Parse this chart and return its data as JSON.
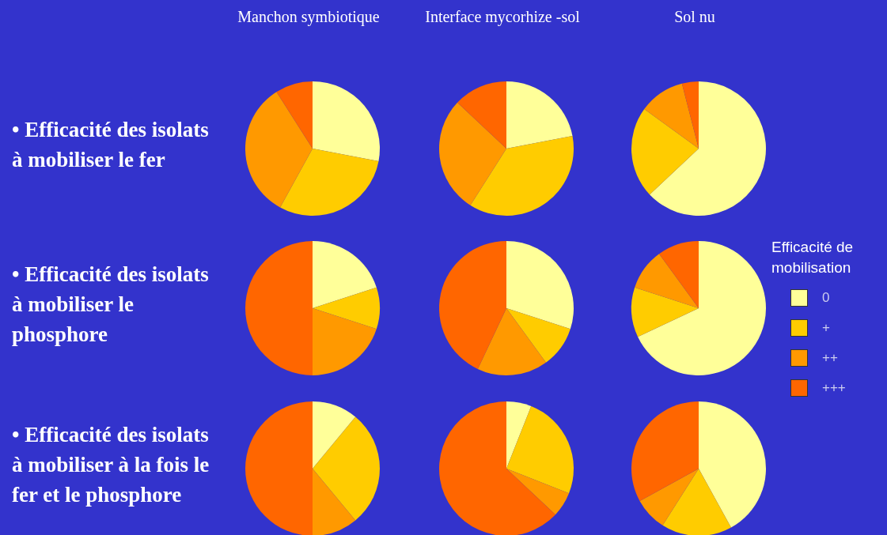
{
  "chart_data": [
    {
      "type": "pie",
      "title": "Manchon symbiotique",
      "ylabel": "• Efficacité des isolats à mobiliser le fer",
      "categories": [
        null,
        null,
        null,
        null
      ],
      "values": [
        28,
        30,
        33,
        9
      ],
      "colors": [
        "#ffff99",
        "#ffcc00",
        "#ff9900",
        "#ff6600"
      ],
      "legend": false
    },
    {
      "type": "pie",
      "title": "Interface mycorhize -sol",
      "categories": [
        null,
        null,
        null,
        null
      ],
      "values": [
        22,
        37,
        28,
        13
      ],
      "colors": [
        "#ffff99",
        "#ffcc00",
        "#ff9900",
        "#ff6600"
      ],
      "legend": false
    },
    {
      "type": "pie",
      "title": "Sol nu",
      "categories": [
        null,
        null,
        null,
        null
      ],
      "values": [
        63,
        22,
        11,
        4
      ],
      "colors": [
        "#ffff99",
        "#ffcc00",
        "#ff9900",
        "#ff6600"
      ],
      "legend": false
    },
    {
      "type": "pie",
      "ylabel": "• Efficacité des isolats à mobiliser le phosphore",
      "categories": [
        null,
        null,
        null,
        null
      ],
      "values": [
        20,
        10,
        20,
        50
      ],
      "colors": [
        "#ffff99",
        "#ffcc00",
        "#ff9900",
        "#ff6600"
      ],
      "legend": false
    },
    {
      "type": "pie",
      "categories": [
        null,
        null,
        null,
        null
      ],
      "values": [
        30,
        10,
        17,
        43
      ],
      "colors": [
        "#ffff99",
        "#ffcc00",
        "#ff9900",
        "#ff6600"
      ],
      "legend": false
    },
    {
      "type": "pie",
      "legend_title": "Efficacité de mobilisation",
      "categories": [
        "0",
        "+",
        "++",
        "+++"
      ],
      "values": [
        68,
        12,
        10,
        10
      ],
      "colors": [
        "#ffff99",
        "#ffcc00",
        "#ff9900",
        "#ff6600"
      ],
      "legend": "right"
    },
    {
      "type": "pie",
      "ylabel": "• Efficacité des isolats à mobiliser à la fois le fer et le phosphore",
      "categories": [
        null,
        null,
        null,
        null
      ],
      "values": [
        11,
        28,
        11,
        50
      ],
      "colors": [
        "#ffff99",
        "#ffcc00",
        "#ff9900",
        "#ff6600"
      ],
      "legend": false
    },
    {
      "type": "pie",
      "categories": [
        null,
        null,
        null,
        null
      ],
      "values": [
        6,
        25,
        6,
        63
      ],
      "colors": [
        "#ffff99",
        "#ffcc00",
        "#ff9900",
        "#ff6600"
      ],
      "legend": false
    },
    {
      "type": "pie",
      "categories": [
        null,
        null,
        null,
        null
      ],
      "values": [
        42,
        17,
        8,
        33
      ],
      "colors": [
        "#ffff99",
        "#ffcc00",
        "#ff9900",
        "#ff6600"
      ],
      "legend": false
    }
  ]
}
